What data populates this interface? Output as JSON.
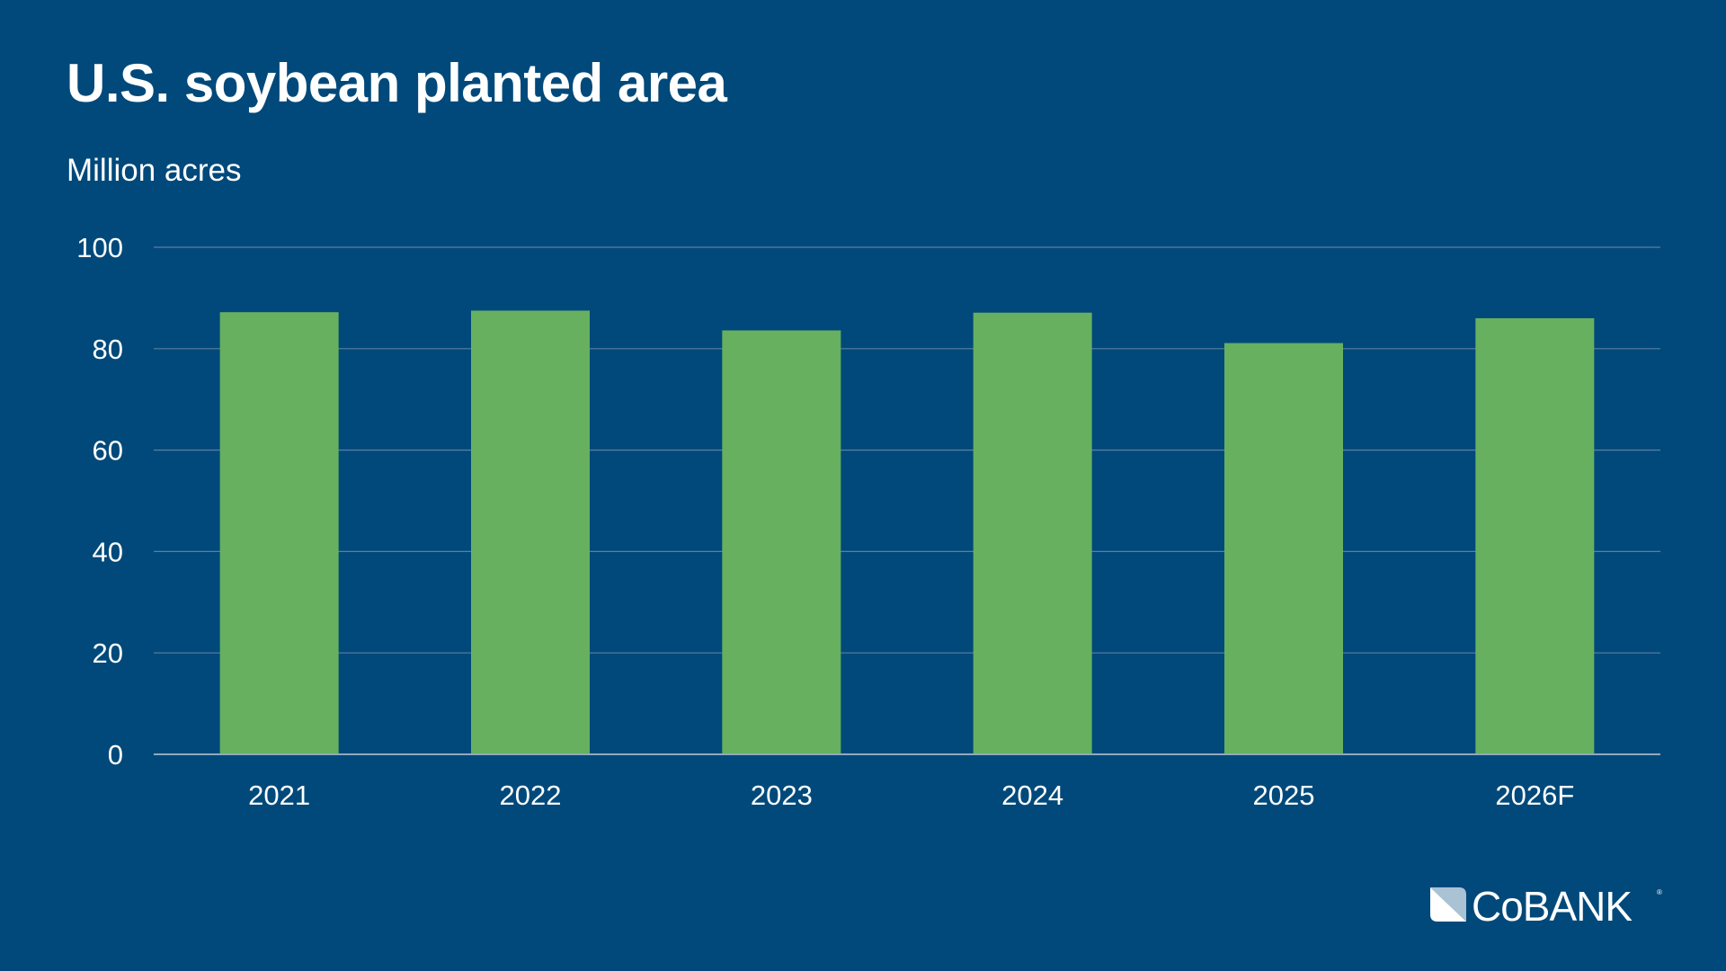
{
  "chart_data": {
    "type": "bar",
    "title": "U.S. soybean planted area",
    "subtitle": "Million acres",
    "categories": [
      "2021",
      "2022",
      "2023",
      "2024",
      "2025",
      "2026F"
    ],
    "values": [
      87.2,
      87.5,
      83.6,
      87.1,
      81.1,
      86.0
    ],
    "ylim": [
      0,
      100
    ],
    "yticks": [
      0,
      20,
      40,
      60,
      80,
      100
    ],
    "grid": true,
    "colors": {
      "background": "#01497a",
      "bar": "#66b060",
      "grid": "#5a7fa0"
    }
  },
  "logo": {
    "text": "COBANK"
  }
}
